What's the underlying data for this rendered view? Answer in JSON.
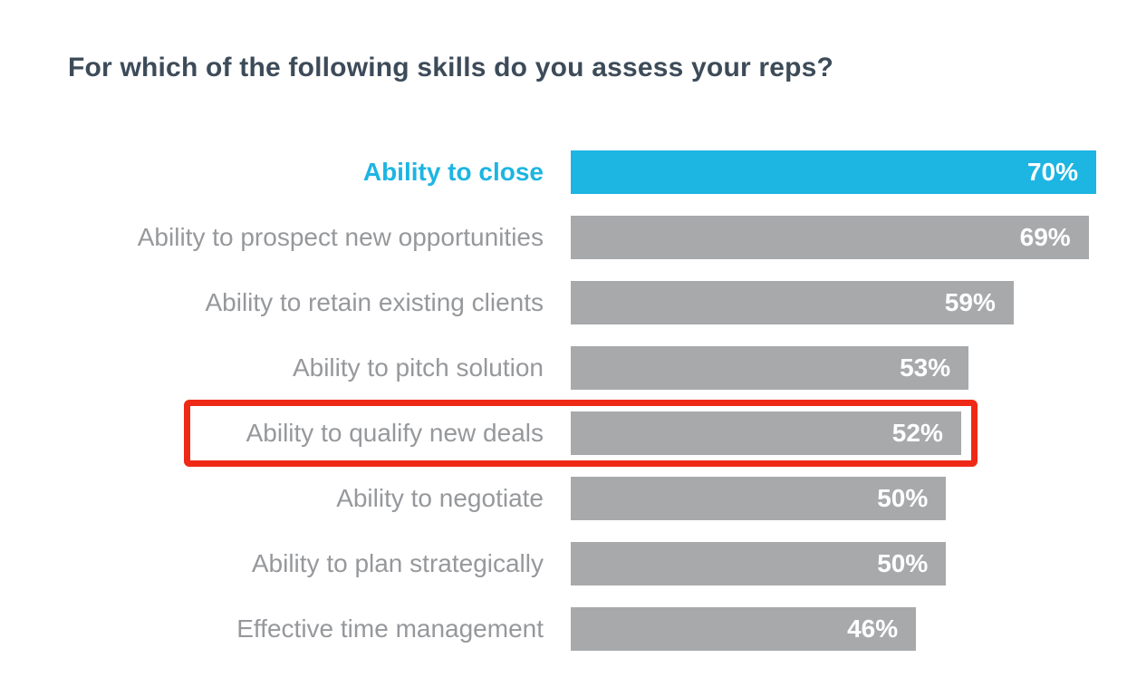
{
  "title": "For which of the following skills do you assess your reps?",
  "chart_data": {
    "type": "bar",
    "orientation": "horizontal",
    "title": "For which of the following skills do you assess your reps?",
    "categories": [
      "Ability to close",
      "Ability to prospect new opportunities",
      "Ability to retain existing clients",
      "Ability to pitch solution",
      "Ability to qualify new deals",
      "Ability to negotiate",
      "Ability to plan strategically",
      "Effective time management"
    ],
    "values": [
      70,
      69,
      59,
      53,
      52,
      50,
      50,
      46
    ],
    "display_values": [
      "70%",
      "69%",
      "59%",
      "53%",
      "52%",
      "50%",
      "50%",
      "46%"
    ],
    "value_suffix": "%",
    "scale_max": 70,
    "xlim": [
      0,
      70
    ],
    "grid": false,
    "legend": false,
    "highlight_index": 0,
    "highlighted_category": "Ability to close",
    "annotation_index": 4,
    "annotated_category": "Ability to qualify new deals",
    "colors": {
      "background": "#ffffff",
      "title": "#3d4b59",
      "label": "#96989b",
      "bar": "#a7a9ab",
      "highlight_bar": "#1db5e2",
      "highlight_label": "#1db5e2",
      "value_text": "#ffffff",
      "annotation_box": "#ee2a16"
    }
  }
}
